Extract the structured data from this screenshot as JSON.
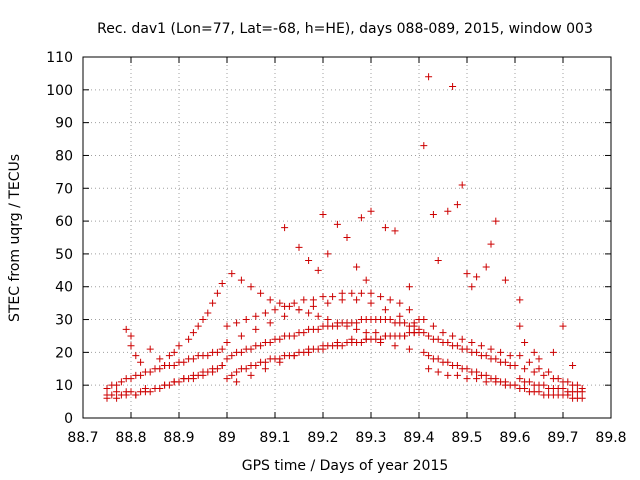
{
  "chart_data": {
    "type": "scatter",
    "title": "Rec. dav1 (Lon=77, Lat=-68, h=HE), days 088-089, 2015, window 003",
    "xlabel": "GPS time / Days of year 2015",
    "ylabel": "STEC from uqrg / TECUs",
    "xlim": [
      88.7,
      89.8
    ],
    "ylim": [
      0,
      110
    ],
    "xticks": [
      "88.7",
      "88.8",
      "88.9",
      "89",
      "89.1",
      "89.2",
      "89.3",
      "89.4",
      "89.5",
      "89.6",
      "89.7",
      "89.8"
    ],
    "yticks": [
      "0",
      "10",
      "20",
      "30",
      "40",
      "50",
      "60",
      "70",
      "80",
      "90",
      "100",
      "110"
    ],
    "grid": true,
    "marker": "plus",
    "color": "#cc0000",
    "series": [
      {
        "x": [
          88.75,
          88.76,
          88.77,
          88.78,
          88.79,
          88.8,
          88.81,
          88.82,
          88.83,
          88.84,
          88.85,
          88.86,
          88.87,
          88.88,
          88.89,
          88.9,
          88.91,
          88.92,
          88.93,
          88.94,
          88.95,
          88.96,
          88.97,
          88.98,
          88.99,
          88.75,
          88.76,
          88.77,
          88.78,
          88.79,
          88.8,
          88.81,
          88.82,
          88.83,
          88.84,
          88.85,
          88.86,
          88.87,
          88.88,
          88.89,
          88.9,
          88.91,
          88.92,
          88.93,
          88.94,
          88.95,
          88.96,
          88.97,
          88.98,
          88.99,
          88.75,
          88.77,
          88.79,
          88.81,
          88.83,
          88.85,
          88.87,
          88.89,
          88.91,
          88.93,
          88.95,
          88.97,
          88.99,
          88.79,
          88.8,
          88.8,
          88.81,
          88.82,
          88.84,
          88.86,
          88.87,
          88.88,
          88.89,
          88.9,
          88.92,
          88.93,
          88.94,
          88.95,
          88.96,
          88.97,
          88.98,
          88.99,
          89.0,
          89.01,
          89.02,
          89.03,
          89.04,
          89.05,
          89.06,
          89.07,
          89.08,
          89.09,
          89.1,
          89.11,
          89.12,
          89.13,
          89.14,
          89.15,
          89.16,
          89.17,
          89.18,
          89.19,
          89.2,
          89.21,
          89.22,
          89.23,
          89.24,
          89.25,
          89.26,
          89.27,
          89.28,
          89.29,
          89.3,
          89.31,
          89.32,
          89.33,
          89.34,
          89.35,
          89.36,
          89.37,
          89.38,
          89.39,
          89.4,
          89.0,
          89.01,
          89.02,
          89.03,
          89.04,
          89.05,
          89.06,
          89.07,
          89.08,
          89.09,
          89.1,
          89.11,
          89.12,
          89.13,
          89.14,
          89.15,
          89.16,
          89.17,
          89.18,
          89.19,
          89.2,
          89.21,
          89.22,
          89.23,
          89.24,
          89.25,
          89.26,
          89.27,
          89.28,
          89.29,
          89.3,
          89.31,
          89.32,
          89.33,
          89.34,
          89.35,
          89.36,
          89.37,
          89.38,
          89.39,
          89.4,
          89.0,
          89.02,
          89.04,
          89.06,
          89.08,
          89.1,
          89.12,
          89.14,
          89.16,
          89.18,
          89.2,
          89.22,
          89.24,
          89.26,
          89.28,
          89.3,
          89.32,
          89.34,
          89.36,
          89.38,
          89.4,
          89.01,
          89.03,
          89.05,
          89.07,
          89.09,
          89.11,
          89.13,
          89.15,
          89.17,
          89.19,
          89.21,
          89.23,
          89.25,
          89.27,
          89.29,
          89.31,
          89.33,
          89.35,
          89.37,
          89.39,
          89.0,
          89.03,
          89.06,
          89.09,
          89.12,
          89.15,
          89.18,
          89.21,
          89.24,
          89.27,
          89.3,
          89.33,
          89.36,
          89.39,
          89.02,
          89.05,
          89.08,
          89.11,
          89.14,
          89.17,
          89.2,
          89.23,
          89.26,
          89.29,
          89.32,
          89.35,
          89.38,
          89.12,
          89.15,
          89.17,
          89.19,
          89.2,
          89.21,
          89.23,
          89.25,
          89.27,
          89.28,
          89.29,
          89.3,
          89.33,
          89.35,
          89.38,
          89.41,
          89.42,
          89.43,
          89.44,
          89.45,
          89.46,
          89.47,
          89.48,
          89.49,
          89.5,
          89.51,
          89.52,
          89.53,
          89.54,
          89.55,
          89.56,
          89.57,
          89.58,
          89.59,
          89.6,
          89.41,
          89.42,
          89.43,
          89.44,
          89.45,
          89.46,
          89.47,
          89.48,
          89.49,
          89.5,
          89.51,
          89.52,
          89.53,
          89.54,
          89.55,
          89.56,
          89.57,
          89.58,
          89.59,
          89.6,
          89.41,
          89.43,
          89.45,
          89.47,
          89.49,
          89.51,
          89.53,
          89.55,
          89.57,
          89.59,
          89.42,
          89.44,
          89.46,
          89.48,
          89.5,
          89.52,
          89.54,
          89.56,
          89.58,
          89.6,
          89.41,
          89.42,
          89.43,
          89.44,
          89.46,
          89.47,
          89.48,
          89.49,
          89.5,
          89.51,
          89.52,
          89.54,
          89.55,
          89.56,
          89.58,
          89.61,
          89.61,
          89.62,
          89.63,
          89.64,
          89.65,
          89.66,
          89.67,
          89.68,
          89.69,
          89.7,
          89.71,
          89.72,
          89.73,
          89.74,
          89.61,
          89.62,
          89.63,
          89.64,
          89.65,
          89.66,
          89.67,
          89.68,
          89.69,
          89.7,
          89.71,
          89.72,
          89.73,
          89.74,
          89.61,
          89.63,
          89.65,
          89.67,
          89.69,
          89.71,
          89.73,
          89.62,
          89.64,
          89.66,
          89.68,
          89.7,
          89.72,
          89.74,
          89.61,
          89.62,
          89.64,
          89.65,
          89.68,
          89.7,
          89.72
        ],
        "y": [
          7,
          7,
          8,
          7,
          8,
          8,
          7,
          8,
          9,
          8,
          9,
          9,
          10,
          10,
          11,
          11,
          12,
          12,
          12,
          13,
          13,
          14,
          14,
          15,
          16,
          9,
          10,
          10,
          11,
          12,
          12,
          13,
          13,
          14,
          14,
          15,
          15,
          16,
          16,
          16,
          17,
          17,
          18,
          18,
          19,
          19,
          19,
          20,
          20,
          21,
          6,
          6,
          7,
          7,
          8,
          9,
          10,
          11,
          12,
          13,
          14,
          15,
          16,
          27,
          25,
          22,
          19,
          17,
          21,
          18,
          16,
          19,
          20,
          22,
          24,
          26,
          28,
          30,
          32,
          35,
          38,
          41,
          12,
          13,
          14,
          15,
          15,
          16,
          16,
          17,
          17,
          18,
          18,
          18,
          19,
          19,
          19,
          20,
          20,
          20,
          21,
          21,
          21,
          22,
          22,
          22,
          22,
          23,
          23,
          23,
          23,
          24,
          24,
          24,
          24,
          25,
          25,
          25,
          25,
          25,
          26,
          26,
          26,
          18,
          19,
          20,
          20,
          21,
          21,
          22,
          22,
          23,
          23,
          24,
          24,
          25,
          25,
          25,
          26,
          26,
          27,
          27,
          27,
          28,
          28,
          28,
          28,
          29,
          29,
          29,
          29,
          30,
          30,
          30,
          30,
          30,
          30,
          30,
          29,
          29,
          29,
          28,
          28,
          27,
          28,
          29,
          30,
          31,
          32,
          33,
          34,
          35,
          36,
          36,
          37,
          37,
          38,
          38,
          38,
          38,
          37,
          36,
          35,
          33,
          30,
          44,
          42,
          40,
          38,
          36,
          35,
          34,
          33,
          32,
          31,
          30,
          29,
          28,
          27,
          26,
          26,
          25,
          25,
          25,
          26,
          23,
          25,
          27,
          29,
          31,
          33,
          34,
          35,
          36,
          36,
          35,
          33,
          31,
          29,
          11,
          13,
          15,
          17,
          19,
          21,
          22,
          23,
          24,
          24,
          23,
          22,
          21,
          58,
          52,
          48,
          45,
          62,
          50,
          59,
          55,
          46,
          61,
          42,
          63,
          58,
          57,
          40,
          26,
          25,
          24,
          24,
          23,
          23,
          22,
          22,
          21,
          21,
          20,
          20,
          19,
          19,
          18,
          18,
          17,
          17,
          16,
          16,
          20,
          19,
          18,
          18,
          17,
          17,
          16,
          16,
          15,
          15,
          14,
          14,
          13,
          13,
          12,
          12,
          11,
          11,
          10,
          10,
          30,
          28,
          26,
          25,
          24,
          23,
          22,
          21,
          20,
          19,
          15,
          14,
          13,
          13,
          12,
          12,
          11,
          11,
          10,
          10,
          83,
          104,
          62,
          48,
          63,
          101,
          65,
          71,
          44,
          40,
          43,
          46,
          53,
          60,
          42,
          36,
          12,
          11,
          11,
          10,
          10,
          10,
          9,
          9,
          9,
          9,
          8,
          8,
          8,
          8,
          9,
          9,
          8,
          8,
          8,
          7,
          7,
          7,
          7,
          7,
          7,
          6,
          6,
          6,
          19,
          17,
          15,
          14,
          12,
          11,
          10,
          15,
          14,
          13,
          12,
          11,
          10,
          9,
          28,
          23,
          20,
          18,
          20,
          28,
          16
        ]
      }
    ]
  }
}
